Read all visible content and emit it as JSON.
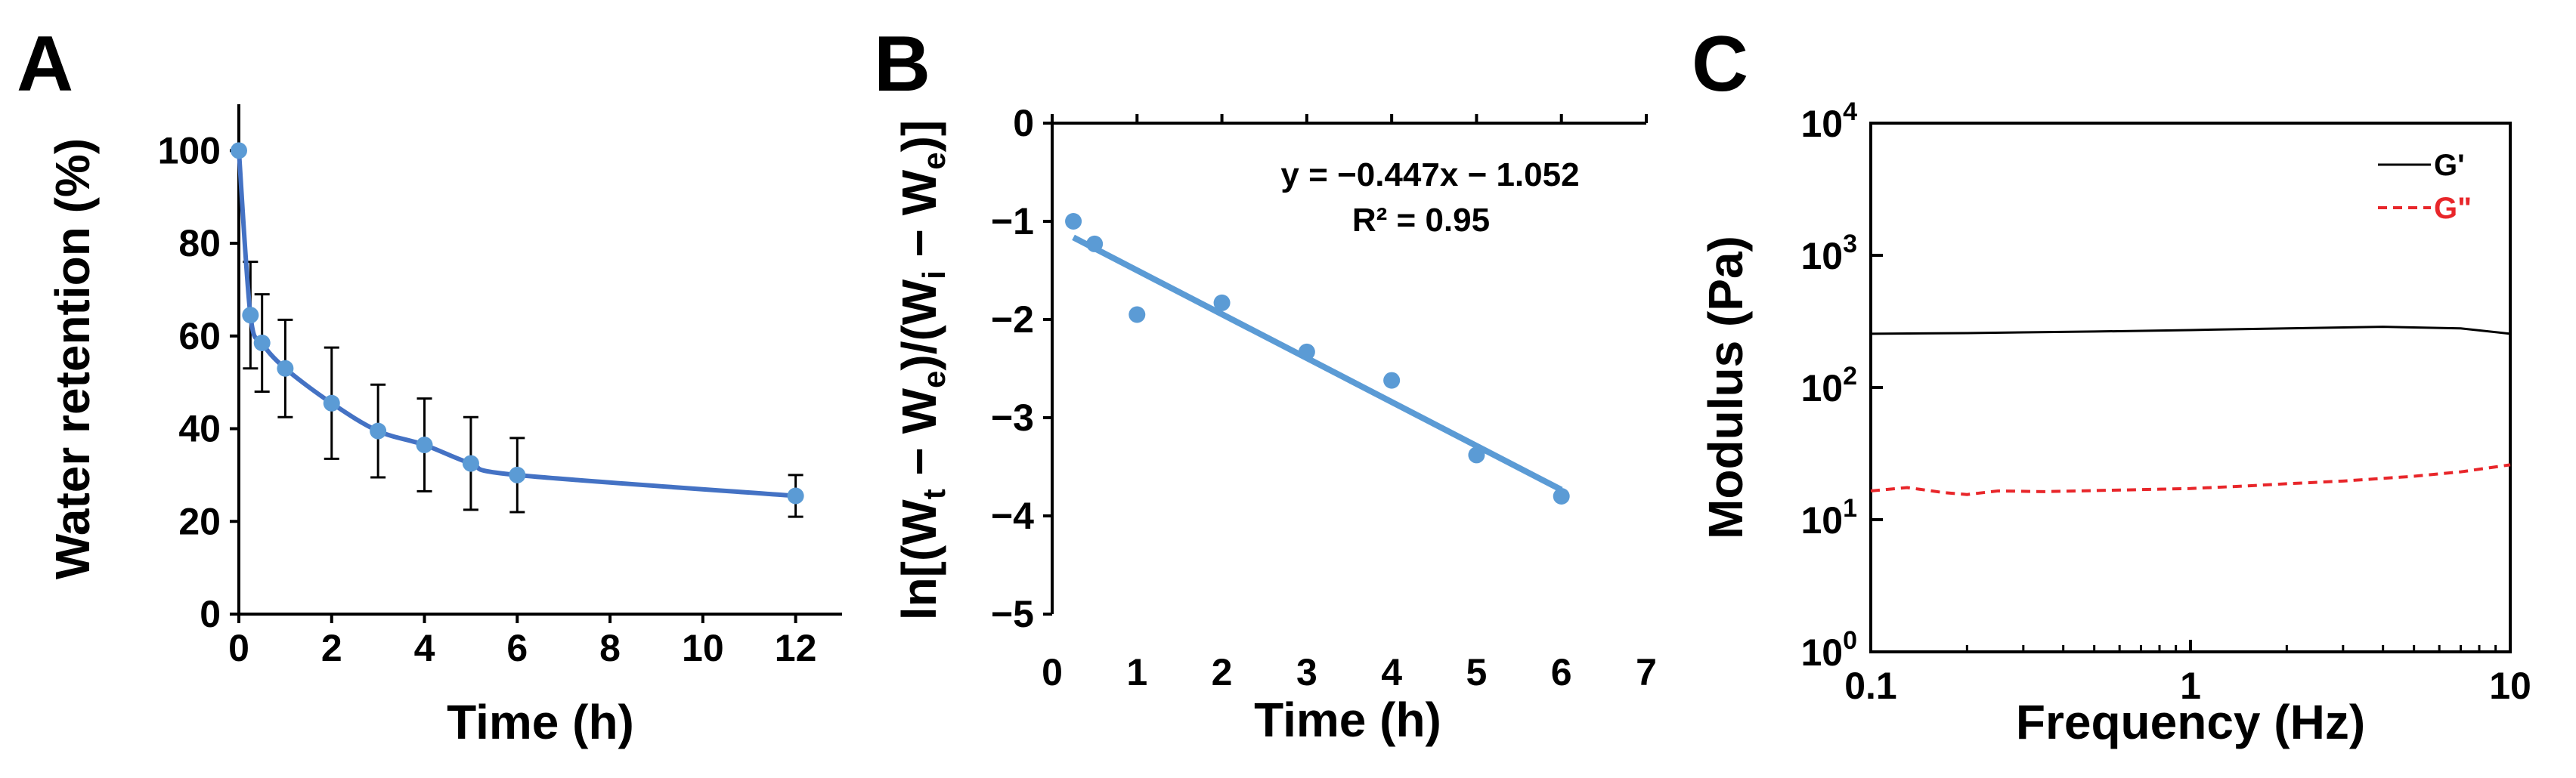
{
  "colors": {
    "blue": "#4472C4",
    "marker": "#5B9BD5",
    "black": "#000000",
    "red": "#E8262A"
  },
  "chart_data": [
    {
      "panel": "A",
      "type": "line",
      "xlabel": "Time (h)",
      "ylabel": "Water retention (%)",
      "xlim": [
        0,
        13
      ],
      "ylim": [
        0,
        110
      ],
      "xticks": [
        0,
        2,
        4,
        6,
        8,
        10,
        12
      ],
      "yticks": [
        0,
        20,
        40,
        60,
        80,
        100
      ],
      "x": [
        0,
        0.25,
        0.5,
        1,
        2,
        3,
        4,
        5,
        6,
        12
      ],
      "y": [
        100,
        64.5,
        58.5,
        53,
        45.5,
        39.5,
        36.5,
        32.5,
        30,
        25.5
      ],
      "error": [
        0,
        11.5,
        10.5,
        10.5,
        12,
        10,
        10,
        10,
        8,
        4.5
      ]
    },
    {
      "panel": "B",
      "type": "scatter",
      "xlabel": "Time (h)",
      "ylabel_parts": [
        "ln[(W",
        "t",
        " − W",
        "e",
        ")/(W",
        "i",
        " − W",
        "e",
        ")]"
      ],
      "xlim": [
        0,
        7
      ],
      "ylim": [
        -5,
        0
      ],
      "xticks": [
        0,
        1,
        2,
        3,
        4,
        5,
        6,
        7
      ],
      "yticks": [
        0,
        -1,
        -2,
        -3,
        -4,
        -5
      ],
      "x": [
        0.25,
        0.5,
        1,
        2,
        3,
        4,
        5,
        6
      ],
      "y": [
        -1.0,
        -1.23,
        -1.95,
        -1.83,
        -2.33,
        -2.62,
        -3.38,
        -3.8
      ],
      "fit": {
        "slope": -0.447,
        "intercept": -1.052,
        "x_range": [
          0.25,
          6
        ]
      },
      "equation": "y = −0.447x − 1.052",
      "r2": "R² = 0.95"
    },
    {
      "panel": "C",
      "type": "line",
      "xscale": "log",
      "yscale": "log",
      "xlabel": "Frequency (Hz)",
      "ylabel": "Modulus (Pa)",
      "xlim": [
        0.1,
        10
      ],
      "ylim": [
        1,
        10000
      ],
      "xticks": [
        "0.1",
        "1",
        "10"
      ],
      "ytick_exponents": [
        "0",
        "1",
        "2",
        "3",
        "4"
      ],
      "ytick_base": "10",
      "legend_position": "top-right",
      "series": [
        {
          "name": "G'",
          "style": "solid",
          "color": "#000000",
          "x": [
            0.1,
            0.2,
            0.5,
            1,
            2,
            4,
            7,
            10
          ],
          "y": [
            255,
            258,
            265,
            272,
            280,
            288,
            280,
            255
          ]
        },
        {
          "name": "G\"",
          "style": "dashed",
          "color": "#E8262A",
          "x": [
            0.1,
            0.13,
            0.17,
            0.2,
            0.25,
            0.35,
            0.5,
            0.8,
            1,
            1.5,
            2,
            3,
            5,
            7,
            10
          ],
          "y": [
            16.5,
            17.5,
            16,
            15.5,
            16.5,
            16.3,
            16.6,
            17,
            17.2,
            18,
            18.7,
            19.6,
            21.3,
            23,
            26
          ]
        }
      ]
    }
  ]
}
